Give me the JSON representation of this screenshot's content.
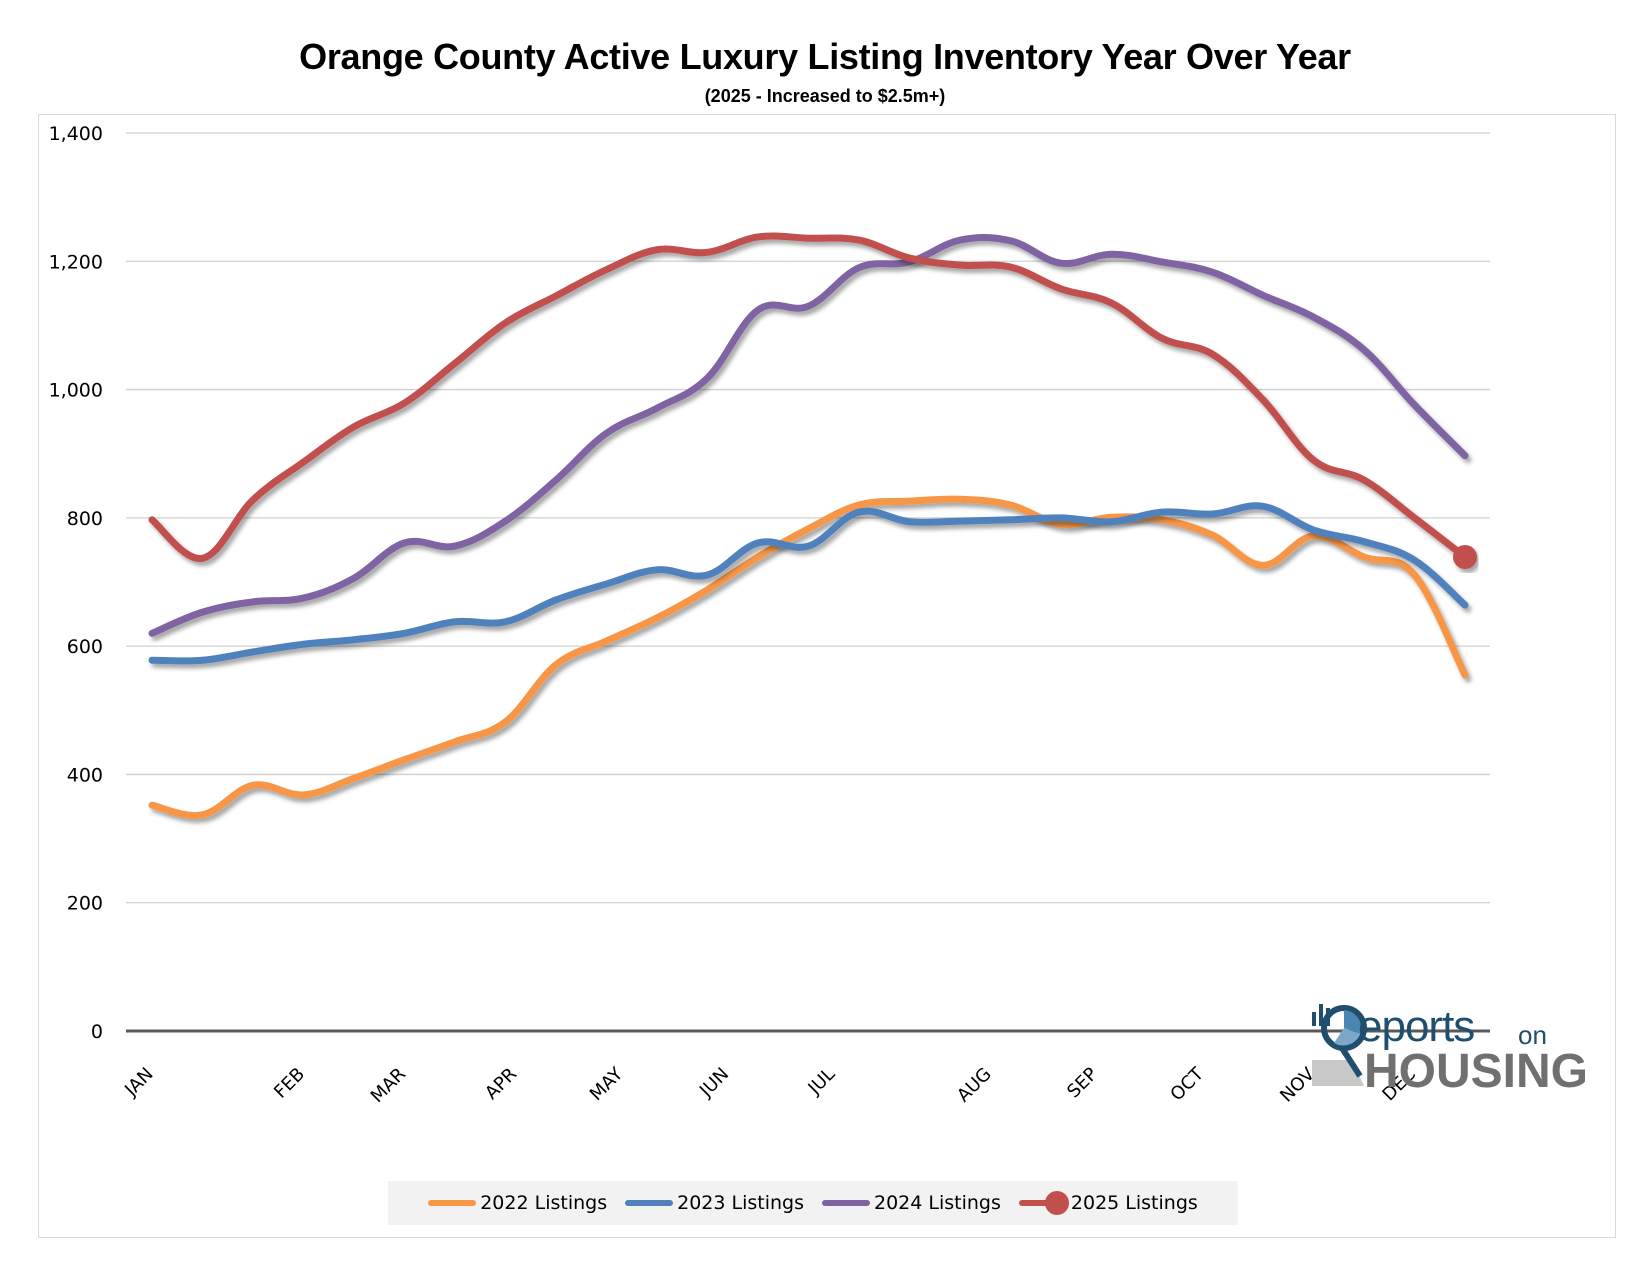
{
  "chart_data": {
    "type": "line",
    "title": "Orange County Active Luxury Listing Inventory Year Over Year",
    "subtitle": "(2025 - Increased to $2.5m+)",
    "xlabel": "",
    "ylabel": "",
    "ylim": [
      0,
      1400
    ],
    "yticks": [
      0,
      200,
      400,
      600,
      800,
      1000,
      1200,
      1400
    ],
    "ytick_labels": [
      "0",
      "200",
      "400",
      "600",
      "800",
      "1,000",
      "1,200",
      "1,400"
    ],
    "grid": true,
    "x_points": 27,
    "month_labels": [
      {
        "label": "JAN",
        "index": 0
      },
      {
        "label": "FEB",
        "index": 3
      },
      {
        "label": "MAR",
        "index": 5
      },
      {
        "label": "APR",
        "index": 7.2
      },
      {
        "label": "MAY",
        "index": 9.3
      },
      {
        "label": "JUN",
        "index": 11.4
      },
      {
        "label": "JUL",
        "index": 13.5
      },
      {
        "label": "AUG",
        "index": 16.6
      },
      {
        "label": "SEP",
        "index": 18.7
      },
      {
        "label": "OCT",
        "index": 20.8
      },
      {
        "label": "NOV",
        "index": 23
      },
      {
        "label": "DEC",
        "index": 25
      }
    ],
    "legend_position": "bottom",
    "series": [
      {
        "name": "2022 Listings",
        "color": "#f79646",
        "values": [
          352,
          337,
          383,
          368,
          394,
          423,
          451,
          482,
          571,
          608,
          644,
          688,
          739,
          783,
          820,
          826,
          829,
          820,
          790,
          801,
          797,
          773,
          726,
          772,
          739,
          711,
          555
        ]
      },
      {
        "name": "2023 Listings",
        "color": "#4f81bd",
        "values": [
          578,
          578,
          591,
          603,
          610,
          620,
          638,
          638,
          672,
          697,
          719,
          711,
          761,
          756,
          809,
          794,
          795,
          797,
          800,
          794,
          809,
          806,
          818,
          781,
          763,
          734,
          664
        ]
      },
      {
        "name": "2024 Listings",
        "color": "#8064a2",
        "values": [
          620,
          653,
          669,
          675,
          706,
          761,
          756,
          795,
          859,
          932,
          971,
          1018,
          1124,
          1130,
          1190,
          1199,
          1233,
          1232,
          1197,
          1211,
          1199,
          1183,
          1147,
          1113,
          1062,
          976,
          897
        ]
      },
      {
        "name": "2025 Listings",
        "color": "#c0504d",
        "end_marker": true,
        "values": [
          797,
          737,
          828,
          887,
          942,
          979,
          1041,
          1104,
          1146,
          1187,
          1218,
          1214,
          1238,
          1236,
          1233,
          1205,
          1194,
          1191,
          1157,
          1135,
          1080,
          1055,
          984,
          890,
          859,
          800,
          739
        ]
      }
    ]
  },
  "logo": {
    "reports": "eports",
    "on": "on",
    "housing": "HOUSING"
  }
}
